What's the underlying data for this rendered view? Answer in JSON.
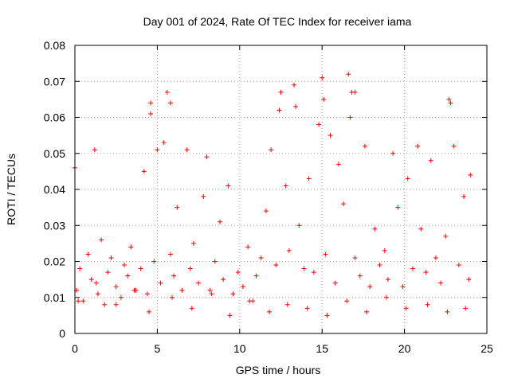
{
  "chart_data": {
    "type": "scatter",
    "title": "Day 001 of 2024, Rate Of TEC Index for receiver iama",
    "xlabel": "GPS time / hours",
    "ylabel": "ROTI / TECUs",
    "xlim": [
      0,
      25
    ],
    "ylim": [
      0,
      0.08
    ],
    "x_ticks": [
      "0",
      "5",
      "10",
      "15",
      "20",
      "25"
    ],
    "y_ticks": [
      "0",
      "0.01",
      "0.02",
      "0.03",
      "0.04",
      "0.05",
      "0.06",
      "0.07",
      "0.08"
    ],
    "grid": true,
    "marker": "+",
    "color": "#ff0000",
    "series": [
      {
        "x": [
          0.0,
          0.1,
          0.3,
          0.5,
          0.8,
          1.0,
          1.2,
          1.4,
          1.6,
          1.8,
          2.0,
          2.2,
          2.5,
          2.8,
          3.0,
          3.2,
          3.4,
          3.7,
          4.0,
          4.2,
          4.4,
          4.6,
          4.8,
          5.0,
          5.2,
          5.4,
          5.6,
          5.8,
          6.0,
          6.2,
          6.5,
          6.8,
          7.0,
          7.2,
          7.5,
          7.8,
          8.0,
          8.2,
          8.5,
          8.8,
          9.0,
          9.3,
          9.6,
          9.9,
          10.2,
          10.5,
          10.8,
          11.0,
          11.3,
          11.6,
          11.9,
          12.2,
          12.5,
          12.8,
          13.0,
          13.3,
          13.6,
          13.9,
          14.2,
          14.5,
          14.8,
          15.0,
          15.2,
          15.5,
          15.8,
          16.0,
          16.3,
          16.6,
          16.8,
          17.0,
          17.3,
          17.6,
          17.9,
          18.2,
          18.5,
          18.8,
          19.0,
          19.3,
          19.6,
          19.9,
          20.2,
          20.5,
          20.8,
          21.0,
          21.3,
          21.6,
          21.9,
          22.2,
          22.5,
          22.8,
          23.0,
          23.3,
          23.6,
          23.9,
          24.0,
          0.2,
          1.3,
          2.5,
          3.6,
          4.5,
          5.9,
          7.1,
          8.3,
          9.4,
          10.6,
          11.8,
          12.9,
          14.1,
          15.3,
          16.5,
          17.7,
          18.9,
          20.1,
          21.4,
          22.6,
          23.7,
          16.7,
          15.1,
          13.4,
          22.7,
          5.8,
          4.6,
          12.4,
          17.0
        ],
        "y": [
          0.046,
          0.012,
          0.018,
          0.009,
          0.022,
          0.015,
          0.051,
          0.011,
          0.026,
          0.008,
          0.017,
          0.021,
          0.013,
          0.01,
          0.019,
          0.016,
          0.024,
          0.012,
          0.018,
          0.045,
          0.011,
          0.064,
          0.02,
          0.051,
          0.014,
          0.053,
          0.067,
          0.022,
          0.016,
          0.035,
          0.012,
          0.051,
          0.018,
          0.025,
          0.014,
          0.038,
          0.049,
          0.012,
          0.02,
          0.031,
          0.015,
          0.041,
          0.011,
          0.017,
          0.013,
          0.024,
          0.009,
          0.016,
          0.021,
          0.034,
          0.051,
          0.019,
          0.067,
          0.041,
          0.023,
          0.069,
          0.03,
          0.018,
          0.043,
          0.017,
          0.058,
          0.071,
          0.022,
          0.055,
          0.014,
          0.047,
          0.036,
          0.072,
          0.067,
          0.021,
          0.016,
          0.052,
          0.013,
          0.029,
          0.019,
          0.023,
          0.015,
          0.05,
          0.035,
          0.013,
          0.043,
          0.018,
          0.052,
          0.029,
          0.017,
          0.048,
          0.021,
          0.014,
          0.027,
          0.064,
          0.052,
          0.019,
          0.038,
          0.015,
          0.044,
          0.009,
          0.014,
          0.008,
          0.012,
          0.006,
          0.01,
          0.007,
          0.011,
          0.005,
          0.009,
          0.006,
          0.008,
          0.007,
          0.005,
          0.009,
          0.006,
          0.01,
          0.007,
          0.008,
          0.006,
          0.007,
          0.06,
          0.065,
          0.063,
          0.065,
          0.064,
          0.061,
          0.062,
          0.067
        ]
      }
    ]
  }
}
